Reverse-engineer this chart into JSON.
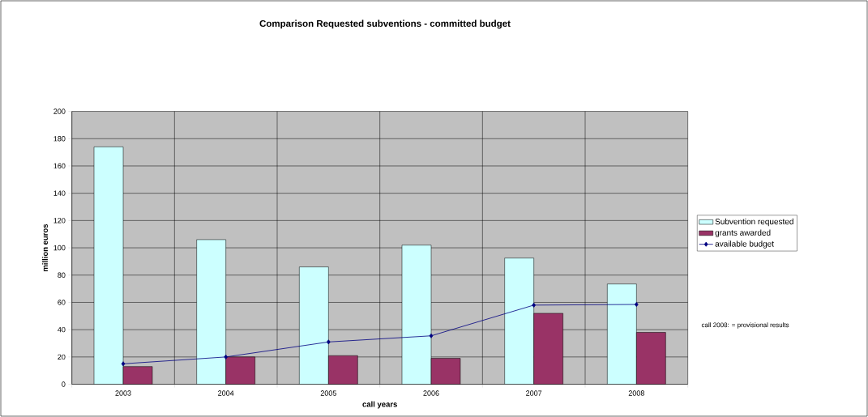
{
  "chart_data": {
    "type": "bar",
    "title": "Comparison Requested subventions - committed budget",
    "xlabel": "call years",
    "ylabel": "million euros",
    "categories": [
      "2003",
      "2004",
      "2005",
      "2006",
      "2007",
      "2008"
    ],
    "series": [
      {
        "name": "Subvention requested",
        "color": "#ccffff",
        "values": [
          174,
          106,
          86,
          102,
          92.5,
          73.5
        ]
      },
      {
        "name": "grants awarded",
        "color": "#993366",
        "values": [
          13,
          20,
          21,
          19,
          52,
          38
        ]
      },
      {
        "name": "available budget",
        "type": "line",
        "color": "#000080",
        "marker": "diamond",
        "values": [
          15,
          20,
          31,
          35.5,
          58,
          58.5
        ]
      }
    ],
    "ylim": [
      0,
      200
    ],
    "yticks": [
      0,
      20,
      40,
      60,
      80,
      100,
      120,
      140,
      160,
      180,
      200
    ],
    "grid": true,
    "legend": "right",
    "annotations": [
      "call 2008: = provisional results"
    ]
  }
}
